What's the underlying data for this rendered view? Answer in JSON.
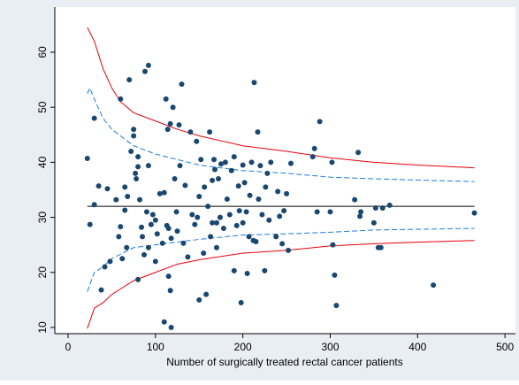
{
  "chart_data": {
    "type": "scatter",
    "x_label": "Number of surgically treated rectal cancer patients",
    "xlim": [
      -15.2,
      512
    ],
    "ylim": [
      8.87,
      68.2
    ],
    "xticks": [
      0,
      100,
      200,
      300,
      400,
      500
    ],
    "yticks": [
      10,
      20,
      30,
      40,
      50,
      60
    ],
    "grid": false,
    "point_color": "#1a476f",
    "points": {
      "x": [
        22,
        25,
        30,
        30,
        35,
        38,
        42,
        45,
        48,
        55,
        58,
        60,
        60,
        62,
        65,
        65,
        67,
        68,
        70,
        72,
        75,
        75,
        77,
        78,
        80,
        80,
        80,
        82,
        84,
        85,
        87,
        88,
        90,
        92,
        92,
        92,
        95,
        97,
        100,
        100,
        102,
        105,
        108,
        110,
        110,
        112,
        113,
        114,
        115,
        115,
        117,
        117,
        118,
        118,
        120,
        122,
        124,
        125,
        127,
        128,
        130,
        132,
        134,
        137,
        140,
        142,
        145,
        147,
        148,
        150,
        150,
        152,
        155,
        156,
        158,
        160,
        162,
        163,
        165,
        165,
        167,
        168,
        170,
        170,
        172,
        174,
        175,
        178,
        180,
        182,
        185,
        187,
        190,
        190,
        193,
        195,
        196,
        198,
        200,
        200,
        202,
        204,
        205,
        207,
        208,
        210,
        212,
        213,
        215,
        217,
        218,
        220,
        222,
        225,
        226,
        228,
        230,
        232,
        238,
        240,
        242,
        245,
        247,
        250,
        252,
        255,
        280,
        282,
        285,
        288,
        300,
        302,
        303,
        305,
        307,
        328,
        332,
        334,
        335,
        350,
        352,
        355,
        358,
        360,
        368,
        418,
        465
      ],
      "y": [
        40.7,
        28.7,
        48,
        32.3,
        35.7,
        16.8,
        21,
        35.2,
        22,
        33.2,
        26.5,
        51.5,
        28.3,
        22.5,
        35.5,
        31.3,
        24.5,
        33.8,
        55,
        42,
        44.8,
        46,
        38,
        37,
        39.2,
        41,
        18.7,
        33.2,
        28.2,
        26.5,
        23.2,
        56.5,
        31,
        39.4,
        57.6,
        24.5,
        28.7,
        30.5,
        29.5,
        22,
        27,
        34.3,
        25.3,
        11,
        34.5,
        51.5,
        28.5,
        46,
        19.3,
        28,
        16.7,
        47,
        26.2,
        10,
        50,
        37,
        31,
        27.5,
        46.8,
        39.4,
        54.2,
        25.3,
        35.8,
        22.8,
        45.5,
        30.5,
        28.7,
        43.8,
        30,
        15,
        33.8,
        40.5,
        23.5,
        35.5,
        16,
        32,
        45.5,
        26.5,
        36.7,
        29,
        40.5,
        38.7,
        29,
        24.5,
        37,
        30,
        39.7,
        28,
        40,
        33.3,
        30.5,
        38.5,
        41,
        20.3,
        28.5,
        35.7,
        31.2,
        14.5,
        29,
        39.5,
        36.3,
        31,
        19.8,
        26.5,
        34,
        40,
        25.8,
        54.5,
        25.6,
        45.5,
        33.3,
        39.4,
        30.5,
        20.3,
        35.5,
        38,
        29.5,
        40,
        26.5,
        34.7,
        30.2,
        25.2,
        31.2,
        34.3,
        24,
        39.8,
        41,
        42.5,
        31,
        47.4,
        31,
        40,
        25,
        19.5,
        14,
        33.2,
        41.8,
        30.2,
        31,
        29,
        31.7,
        24.5,
        24.5,
        31.7,
        32.2,
        17.7,
        30.8
      ]
    },
    "lines": [
      {
        "color": "#e8000b",
        "dash": false,
        "x": [
          22,
          30,
          40,
          50,
          60,
          75,
          100,
          125,
          150,
          200,
          250,
          300,
          350,
          400,
          465
        ],
        "y": [
          64.5,
          62,
          57,
          53.5,
          51,
          49,
          47.5,
          46,
          44.8,
          43,
          42,
          40.8,
          40,
          39.5,
          39
        ]
      },
      {
        "color": "#e8000b",
        "dash": false,
        "x": [
          22,
          30,
          40,
          50,
          75,
          100,
          125,
          150,
          200,
          250,
          300,
          350,
          400,
          465
        ],
        "y": [
          9.8,
          13.5,
          14.5,
          16,
          18.5,
          20,
          21.5,
          22.3,
          23.5,
          24,
          24.8,
          25.2,
          25.5,
          25.8
        ]
      },
      {
        "color": "#1e7ad6",
        "dash": true,
        "x": [
          22,
          25,
          30,
          40,
          50,
          75,
          100,
          150,
          200,
          250,
          300,
          350,
          465
        ],
        "y": [
          52.5,
          53.5,
          51.5,
          48,
          46,
          43,
          41.5,
          39.5,
          38.5,
          38,
          37.3,
          37,
          36.5
        ]
      },
      {
        "color": "#1e7ad6",
        "dash": true,
        "x": [
          22,
          30,
          40,
          50,
          75,
          100,
          150,
          200,
          250,
          300,
          350,
          465
        ],
        "y": [
          16.5,
          20,
          21,
          22.5,
          24.5,
          25,
          26,
          26.8,
          27,
          27.3,
          27.7,
          28
        ]
      },
      {
        "color": "#000000",
        "dash": false,
        "x": [
          22,
          465
        ],
        "y": [
          32,
          32
        ]
      }
    ]
  }
}
